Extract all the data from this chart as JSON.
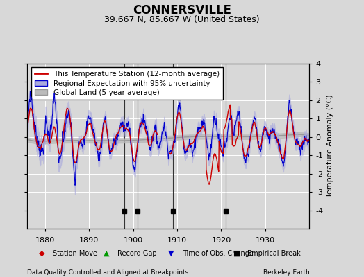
{
  "title": "CONNERSVILLE",
  "subtitle": "39.667 N, 85.667 W (United States)",
  "ylabel": "Temperature Anomaly (°C)",
  "xlabel_note": "Data Quality Controlled and Aligned at Breakpoints",
  "credit": "Berkeley Earth",
  "xlim": [
    1876,
    1940
  ],
  "ylim": [
    -5,
    4
  ],
  "yticks": [
    -4,
    -3,
    -2,
    -1,
    0,
    1,
    2,
    3,
    4
  ],
  "xticks": [
    1880,
    1890,
    1900,
    1910,
    1920,
    1930
  ],
  "empirical_breaks": [
    1898,
    1901,
    1909,
    1921
  ],
  "bg_color": "#d8d8d8",
  "plot_bg_color": "#d8d8d8",
  "grid_color": "#ffffff",
  "red_color": "#cc0000",
  "blue_color": "#0000cc",
  "blue_fill_color": "#aaaadd",
  "gray_color": "#999999",
  "gray_fill_color": "#bbbbbb",
  "title_fontsize": 12,
  "subtitle_fontsize": 9,
  "legend_fontsize": 7.5,
  "axis_fontsize": 8,
  "ylabel_fontsize": 8
}
